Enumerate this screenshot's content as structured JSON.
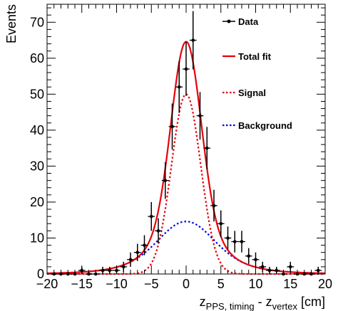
{
  "chart_data": {
    "type": "line",
    "xlim": [
      -20,
      20
    ],
    "ylim": [
      0,
      75
    ],
    "xticks": [
      -20,
      -15,
      -10,
      -5,
      0,
      5,
      10,
      15,
      20
    ],
    "yticks": [
      0,
      10,
      20,
      30,
      40,
      50,
      60,
      70
    ],
    "ylabel": "Events",
    "xlabel": {
      "z1": "z",
      "sub1": "PPS, timing",
      "minus": " - ",
      "z2": "z",
      "sub2": "vertex",
      "unit": " [cm]"
    },
    "legend_position": "top-right",
    "series": [
      {
        "name": "Data",
        "kind": "points",
        "color": "#000000",
        "x": [
          -19,
          -18,
          -17,
          -16,
          -15,
          -14,
          -13,
          -12,
          -11,
          -10,
          -9,
          -8,
          -7,
          -6,
          -5,
          -4,
          -3,
          -2,
          -1,
          0,
          1,
          2,
          3,
          4,
          5,
          6,
          7,
          8,
          9,
          10,
          11,
          12,
          13,
          14,
          15,
          16,
          17,
          18,
          19
        ],
        "y": [
          0,
          0,
          0,
          0,
          1,
          0,
          0,
          1,
          1,
          1,
          2,
          4,
          6,
          8,
          16,
          12,
          26,
          41,
          52,
          57,
          65,
          44,
          35,
          19,
          14,
          10,
          9,
          9,
          5,
          4,
          2,
          1,
          1,
          0,
          2,
          0,
          0,
          0,
          1
        ],
        "err": [
          0,
          0,
          0,
          0,
          1,
          0,
          0,
          1,
          1,
          1,
          1.4,
          2,
          2.4,
          2.8,
          4,
          3.5,
          5.1,
          6.4,
          7.2,
          7.5,
          8.1,
          6.6,
          5.9,
          4.4,
          3.7,
          3.2,
          3,
          3,
          2.2,
          2,
          1.4,
          1,
          1,
          0,
          1.4,
          0,
          0,
          0,
          1
        ]
      },
      {
        "name": "Total fit",
        "kind": "curve",
        "style": "solid",
        "color": "#e8000b",
        "peak": 65
      },
      {
        "name": "Signal",
        "kind": "curve",
        "style": "dotted",
        "color": "#e8000b",
        "peak": 50
      },
      {
        "name": "Background",
        "kind": "curve",
        "style": "dotted",
        "color": "#0000ee",
        "peak": 14.6
      }
    ]
  }
}
